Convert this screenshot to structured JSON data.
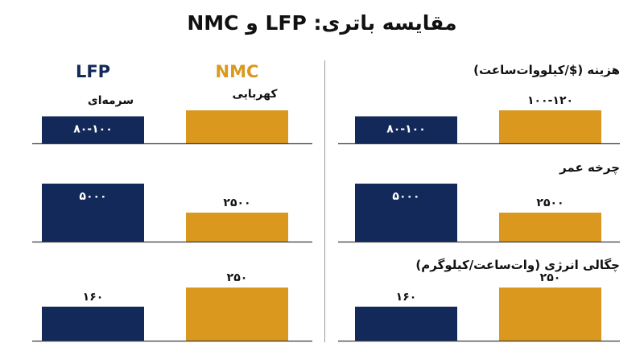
{
  "title": "مقایسه باتری: LFP و NMC",
  "colors": {
    "lfp": "#13295A",
    "nmc": "#DA981E",
    "axis": "#3a3a3a",
    "text": "#111111"
  },
  "chart_data": [
    {
      "type": "bar",
      "panel": "left",
      "series": [
        {
          "name": "LFP",
          "color_label": "سرمه‌ای"
        },
        {
          "name": "NMC",
          "color_label": "کهربایی"
        }
      ],
      "rows": [
        {
          "label": "",
          "LFP": {
            "value": 90,
            "label": "۸۰-۱۰۰"
          },
          "NMC": {
            "value": 110,
            "label": ""
          }
        },
        {
          "label": "",
          "LFP": {
            "value": 5000,
            "label": "۵۰۰۰"
          },
          "NMC": {
            "value": 2500,
            "label": "۲۵۰۰"
          }
        },
        {
          "label": "",
          "LFP": {
            "value": 160,
            "label": "۱۶۰"
          },
          "NMC": {
            "value": 250,
            "label": "۲۵۰"
          }
        }
      ]
    },
    {
      "type": "bar",
      "panel": "right",
      "series": [
        {
          "name": "LFP"
        },
        {
          "name": "NMC"
        }
      ],
      "rows": [
        {
          "label": "هزینه ($/کیلووات‌ساعت)",
          "LFP": {
            "value": 90,
            "label": "۸۰-۱۰۰"
          },
          "NMC": {
            "value": 110,
            "label": "۱۰۰-۱۲۰"
          }
        },
        {
          "label": "چرخه عمر",
          "LFP": {
            "value": 5000,
            "label": "۵۰۰۰"
          },
          "NMC": {
            "value": 2500,
            "label": "۲۵۰۰"
          }
        },
        {
          "label": "چگالی انرژی (وات‌ساعت/کیلوگرم)",
          "LFP": {
            "value": 160,
            "label": "۱۶۰"
          },
          "NMC": {
            "value": 250,
            "label": "۲۵۰"
          }
        }
      ]
    }
  ]
}
